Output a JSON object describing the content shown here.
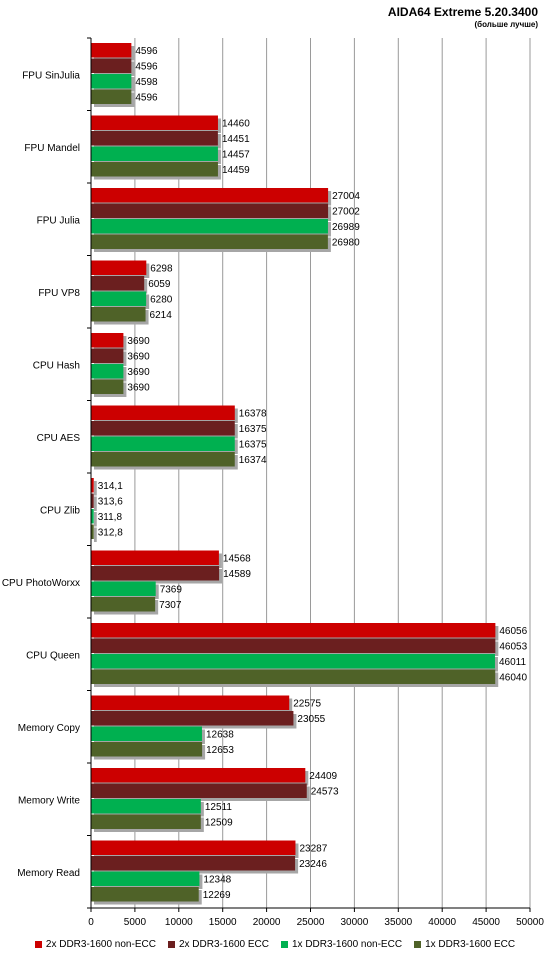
{
  "chart_data": {
    "type": "bar",
    "orientation": "horizontal",
    "title": "AIDA64 Extreme 5.20.3400",
    "subtitle": "(больше лучше)",
    "categories": [
      "FPU SinJulia",
      "FPU Mandel",
      "FPU Julia",
      "FPU VP8",
      "CPU Hash",
      "CPU AES",
      "CPU Zlib",
      "CPU PhotoWorxx",
      "CPU Queen",
      "Memory Copy",
      "Memory Write",
      "Memory Read"
    ],
    "series": [
      {
        "name": "2x DDR3-1600 non-ECC",
        "color": "#cc0000",
        "values": [
          4596,
          14460,
          27004,
          6298,
          3690,
          16378,
          314.1,
          14568,
          46056,
          22575,
          24409,
          23287
        ],
        "labels": [
          "4596",
          "14460",
          "27004",
          "6298",
          "3690",
          "16378",
          "314,1",
          "14568",
          "46056",
          "22575",
          "24409",
          "23287"
        ]
      },
      {
        "name": "2x DDR3-1600 ECC",
        "color": "#6b1f1f",
        "values": [
          4596,
          14451,
          27002,
          6059,
          3690,
          16375,
          313.6,
          14589,
          46053,
          23055,
          24573,
          23246
        ],
        "labels": [
          "4596",
          "14451",
          "27002",
          "6059",
          "3690",
          "16375",
          "313,6",
          "14589",
          "46053",
          "23055",
          "24573",
          "23246"
        ]
      },
      {
        "name": "1x DDR3-1600 non-ECC",
        "color": "#00b050",
        "values": [
          4598,
          14457,
          26989,
          6280,
          3690,
          16375,
          311.8,
          7369,
          46011,
          12638,
          12511,
          12348
        ],
        "labels": [
          "4598",
          "14457",
          "26989",
          "6280",
          "3690",
          "16375",
          "311,8",
          "7369",
          "46011",
          "12638",
          "12511",
          "12348"
        ]
      },
      {
        "name": "1x DDR3-1600 ECC",
        "color": "#4f6228",
        "values": [
          4596,
          14459,
          26980,
          6214,
          3690,
          16374,
          312.8,
          7307,
          46040,
          12653,
          12509,
          12269
        ],
        "labels": [
          "4596",
          "14459",
          "26980",
          "6214",
          "3690",
          "16374",
          "312,8",
          "7307",
          "46040",
          "12653",
          "12509",
          "12269"
        ]
      }
    ],
    "xlim": [
      0,
      50000
    ],
    "xticks": [
      "0",
      "5000",
      "10000",
      "15000",
      "20000",
      "25000",
      "30000",
      "35000",
      "40000",
      "45000",
      "50000"
    ],
    "grid": true,
    "legend_position": "bottom"
  }
}
